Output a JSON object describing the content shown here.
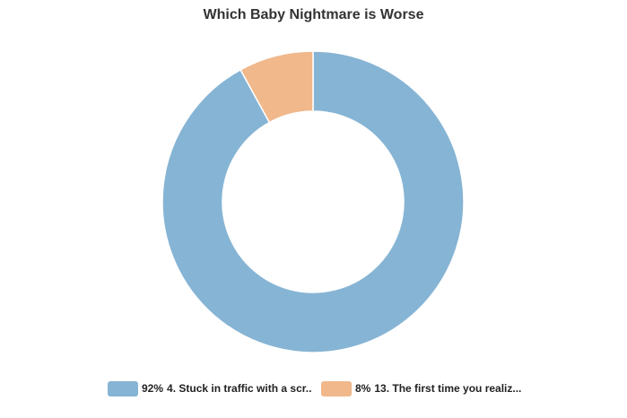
{
  "chart_data": {
    "type": "pie",
    "title": "Which Baby Nightmare is Worse",
    "donut": true,
    "legend_position": "bottom",
    "slices": [
      {
        "label": "4. Stuck in traffic with a scr..",
        "percent_label": "92%",
        "value": 92,
        "color": "#86b4d4"
      },
      {
        "label": "13. The first time you realiz...",
        "percent_label": "8%",
        "value": 8,
        "color": "#f0b88b"
      }
    ]
  }
}
